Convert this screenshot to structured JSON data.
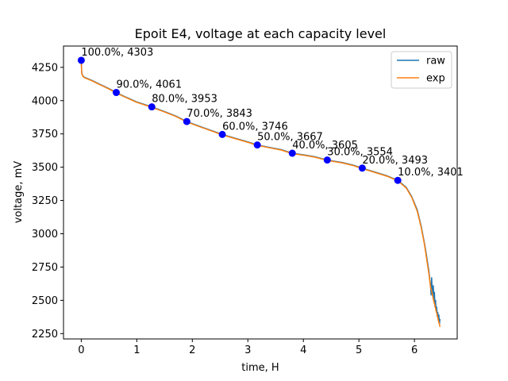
{
  "chart_data": {
    "type": "line",
    "title": "Epoit E4, voltage at each capacity level",
    "xlabel": "time, H",
    "ylabel": "voltage, mV",
    "xlim": [
      -0.32,
      6.77
    ],
    "ylim": [
      2210,
      4410
    ],
    "xticks": [
      0,
      1,
      2,
      3,
      4,
      5,
      6
    ],
    "yticks": [
      2250,
      2500,
      2750,
      3000,
      3250,
      3500,
      3750,
      4000,
      4250
    ],
    "grid": false,
    "legend_position": "top-right",
    "series": [
      {
        "name": "raw",
        "color": "#1f77b4",
        "x": [
          0.0,
          0.005,
          0.01,
          0.03,
          0.06,
          0.1,
          0.2,
          0.35,
          0.5,
          0.63,
          0.8,
          1.0,
          1.27,
          1.5,
          1.7,
          1.9,
          2.1,
          2.3,
          2.54,
          2.8,
          3.0,
          3.17,
          3.4,
          3.6,
          3.8,
          4.0,
          4.2,
          4.43,
          4.7,
          4.9,
          5.06,
          5.3,
          5.5,
          5.7,
          5.85,
          5.95,
          6.05,
          6.12,
          6.18,
          6.22,
          6.26,
          6.29,
          6.3,
          6.31,
          6.32,
          6.33,
          6.34,
          6.35,
          6.36,
          6.37,
          6.38,
          6.39,
          6.4,
          6.41,
          6.42,
          6.43,
          6.44,
          6.45,
          6.46
        ],
        "y": [
          4303,
          4240,
          4205,
          4185,
          4175,
          4168,
          4150,
          4120,
          4090,
          4061,
          4027,
          3990,
          3953,
          3918,
          3885,
          3843,
          3812,
          3782,
          3746,
          3714,
          3690,
          3667,
          3648,
          3632,
          3605,
          3593,
          3579,
          3554,
          3535,
          3515,
          3493,
          3462,
          3436,
          3401,
          3350,
          3280,
          3180,
          3060,
          2930,
          2830,
          2720,
          2610,
          2540,
          2670,
          2560,
          2530,
          2610,
          2500,
          2560,
          2450,
          2500,
          2420,
          2450,
          2380,
          2410,
          2350,
          2390,
          2320,
          2360
        ]
      },
      {
        "name": "exp",
        "color": "#ff7f0e",
        "x": [
          0.0,
          0.005,
          0.01,
          0.03,
          0.06,
          0.1,
          0.2,
          0.35,
          0.5,
          0.63,
          0.8,
          1.0,
          1.27,
          1.5,
          1.7,
          1.9,
          2.1,
          2.3,
          2.54,
          2.8,
          3.0,
          3.17,
          3.4,
          3.6,
          3.8,
          4.0,
          4.2,
          4.43,
          4.7,
          4.9,
          5.06,
          5.3,
          5.5,
          5.7,
          5.85,
          5.95,
          6.05,
          6.12,
          6.18,
          6.22,
          6.26,
          6.29,
          6.31,
          6.33,
          6.35,
          6.37,
          6.39,
          6.41,
          6.43,
          6.45,
          6.46
        ],
        "y": [
          4303,
          4235,
          4200,
          4182,
          4172,
          4165,
          4147,
          4117,
          4087,
          4058,
          4024,
          3987,
          3950,
          3915,
          3882,
          3840,
          3809,
          3779,
          3743,
          3711,
          3687,
          3664,
          3645,
          3629,
          3602,
          3590,
          3576,
          3551,
          3532,
          3512,
          3490,
          3459,
          3433,
          3398,
          3345,
          3275,
          3170,
          3050,
          2920,
          2810,
          2700,
          2600,
          2570,
          2530,
          2490,
          2460,
          2420,
          2390,
          2350,
          2320,
          2300
        ]
      }
    ],
    "markers": {
      "color": "#0000ff",
      "points": [
        {
          "x": 0.0,
          "y": 4303,
          "label": "100.0%, 4303"
        },
        {
          "x": 0.63,
          "y": 4061,
          "label": "90.0%, 4061"
        },
        {
          "x": 1.27,
          "y": 3953,
          "label": "80.0%, 3953"
        },
        {
          "x": 1.9,
          "y": 3843,
          "label": "70.0%, 3843"
        },
        {
          "x": 2.54,
          "y": 3746,
          "label": "60.0%, 3746"
        },
        {
          "x": 3.17,
          "y": 3667,
          "label": "50.0%, 3667"
        },
        {
          "x": 3.8,
          "y": 3605,
          "label": "40.0%, 3605"
        },
        {
          "x": 4.43,
          "y": 3554,
          "label": "30.0%, 3554"
        },
        {
          "x": 5.06,
          "y": 3493,
          "label": "20.0%, 3493"
        },
        {
          "x": 5.7,
          "y": 3401,
          "label": "10.0%, 3401"
        }
      ]
    }
  }
}
